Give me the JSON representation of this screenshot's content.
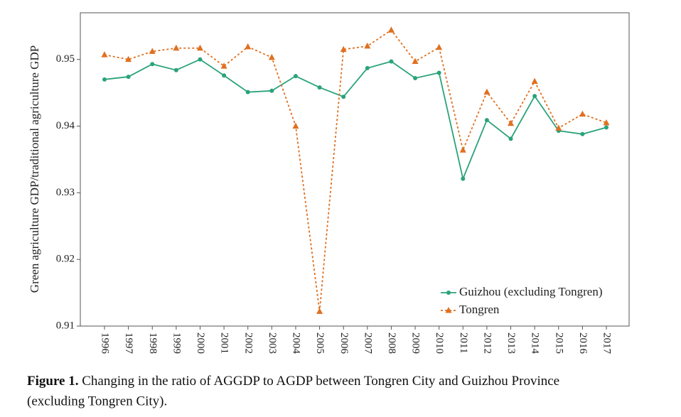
{
  "chart_data": {
    "type": "line",
    "y_label": "Green agriculture GDP/traditional agriculture GDP",
    "caption": {
      "label": "Figure 1.",
      "text": "Changing in the ratio of AGGDP to AGDP between Tongren City and Guizhou Province",
      "text_continued": "(excluding Tongren City)."
    },
    "categories": [
      "1996",
      "1997",
      "1998",
      "1999",
      "2000",
      "2001",
      "2002",
      "2003",
      "2004",
      "2005",
      "2006",
      "2007",
      "2008",
      "2009",
      "2010",
      "2011",
      "2012",
      "2013",
      "2014",
      "2015",
      "2016",
      "2017"
    ],
    "series": [
      {
        "name": "Guizhou (excluding Tongren)",
        "color": "#2aa37a",
        "line_style": "solid",
        "marker": "circle",
        "values": [
          0.947,
          0.9474,
          0.9493,
          0.9484,
          0.95,
          0.9476,
          0.9451,
          0.9453,
          0.9475,
          0.9458,
          0.9444,
          0.9487,
          0.9497,
          0.9472,
          0.948,
          0.9321,
          0.9409,
          0.9381,
          0.9445,
          0.9393,
          0.9388,
          0.9398
        ]
      },
      {
        "name": "Tongren",
        "color": "#e07020",
        "line_style": "dotted",
        "marker": "triangle",
        "values": [
          0.9507,
          0.95,
          0.9512,
          0.9517,
          0.9517,
          0.949,
          0.9519,
          0.9503,
          0.94,
          0.9122,
          0.9515,
          0.952,
          0.9544,
          0.9497,
          0.9518,
          0.9364,
          0.9451,
          0.9404,
          0.9467,
          0.9397,
          0.9418,
          0.9405
        ]
      }
    ],
    "ylim": [
      0.91,
      0.957
    ],
    "yticks": [
      0.91,
      0.92,
      0.93,
      0.94,
      0.95
    ],
    "grid": false,
    "legend_position": "lower-right"
  }
}
